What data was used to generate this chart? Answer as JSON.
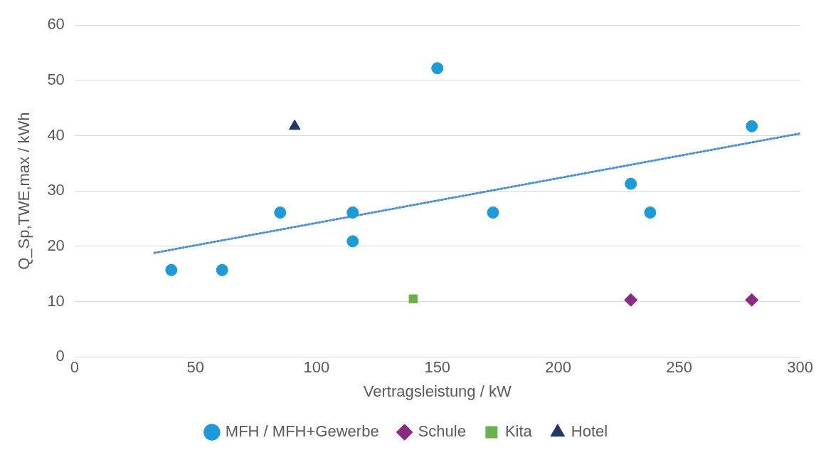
{
  "chart_data": {
    "type": "scatter",
    "xlabel": "Vertragsleistung / kW",
    "ylabel": "Q_Sp,TWE,max / kWh",
    "xlim": [
      0,
      300
    ],
    "xticks": [
      0,
      50,
      100,
      150,
      200,
      250,
      300
    ],
    "ylim": [
      0,
      60
    ],
    "yticks": [
      0,
      10,
      20,
      30,
      40,
      50,
      60
    ],
    "grid": "y",
    "legend": "bottom",
    "series": [
      {
        "name": "MFH / MFH+Gewerbe",
        "color": "#1f9ad8",
        "marker": "circle",
        "x": [
          40,
          61,
          85,
          115,
          115,
          150,
          173,
          230,
          238,
          280
        ],
        "values": [
          15.7,
          15.7,
          26.1,
          26.1,
          20.9,
          52.2,
          26.1,
          31.3,
          26.1,
          41.7
        ]
      },
      {
        "name": "Schule",
        "color": "#8b2a83",
        "marker": "diamond",
        "x": [
          230,
          280
        ],
        "values": [
          10.3,
          10.3
        ]
      },
      {
        "name": "Kita",
        "color": "#6ab04c",
        "marker": "square",
        "x": [
          140
        ],
        "values": [
          10.5
        ]
      },
      {
        "name": "Hotel",
        "color": "#1f3864",
        "marker": "triangle",
        "x": [
          91
        ],
        "values": [
          41.7
        ]
      },
      {
        "type": "line",
        "color": "#4a90d0",
        "marker": "none",
        "line_style": "dotted",
        "x": [
          33,
          300
        ],
        "values": [
          18.8,
          40.4
        ]
      }
    ]
  }
}
